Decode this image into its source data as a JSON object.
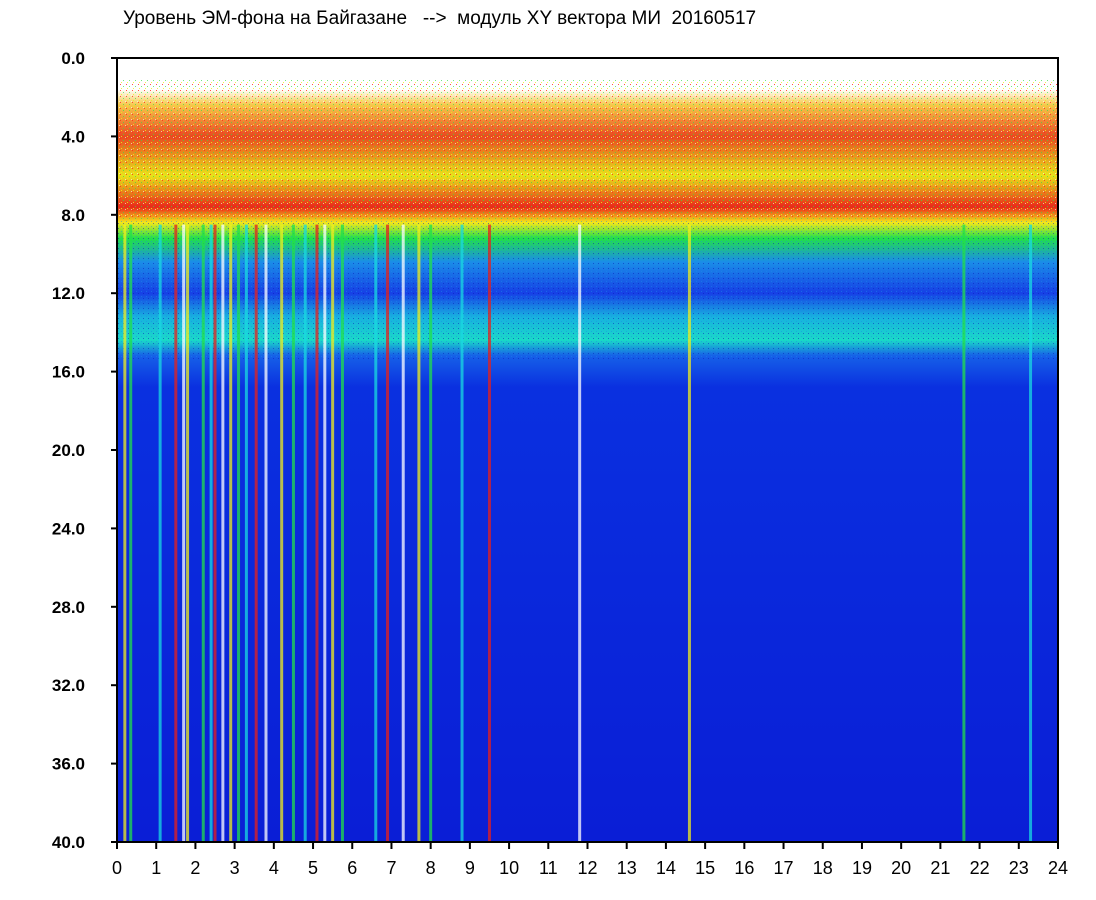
{
  "chart_data": {
    "type": "heatmap",
    "title": "Уровень ЭМ-фона на Байгазане   -->  модуль XY вектора МИ  20160517",
    "xlabel": "",
    "ylabel": "",
    "x_tick_labels": [
      "0",
      "1",
      "2",
      "3",
      "4",
      "5",
      "6",
      "7",
      "8",
      "9",
      "10",
      "11",
      "12",
      "13",
      "14",
      "15",
      "16",
      "17",
      "18",
      "19",
      "20",
      "21",
      "22",
      "23",
      "24"
    ],
    "y_tick_labels": [
      "0.0",
      "4.0",
      "8.0",
      "12.0",
      "16.0",
      "20.0",
      "24.0",
      "28.0",
      "32.0",
      "36.0",
      "40.0"
    ],
    "xlim": [
      0,
      24
    ],
    "ylim": [
      0,
      40
    ],
    "y_inverted": true,
    "grid": false,
    "colormap": [
      "#ffffff",
      "#e8201a",
      "#f3ef1c",
      "#22e04a",
      "#1ad9e0",
      "#1a55e8",
      "#0a20d8"
    ],
    "level_bands": [
      {
        "from": 0.0,
        "to": 8.0,
        "level": "high (red/yellow/green speckle)"
      },
      {
        "from": 8.0,
        "to": 9.0,
        "level": "red/yellow transition"
      },
      {
        "from": 9.0,
        "to": 15.0,
        "level": "blue/cyan"
      },
      {
        "from": 15.0,
        "to": 40.0,
        "level": "low (dark blue)"
      }
    ],
    "vertical_streak_hours": [
      0.2,
      0.35,
      1.1,
      1.5,
      1.7,
      1.8,
      2.2,
      2.4,
      2.5,
      2.7,
      2.9,
      3.1,
      3.3,
      3.55,
      3.8,
      4.2,
      4.5,
      4.8,
      5.1,
      5.3,
      5.5,
      5.75,
      6.6,
      6.9,
      7.3,
      7.7,
      8.0,
      8.8,
      9.5,
      11.8,
      14.6,
      21.6,
      23.3
    ]
  }
}
